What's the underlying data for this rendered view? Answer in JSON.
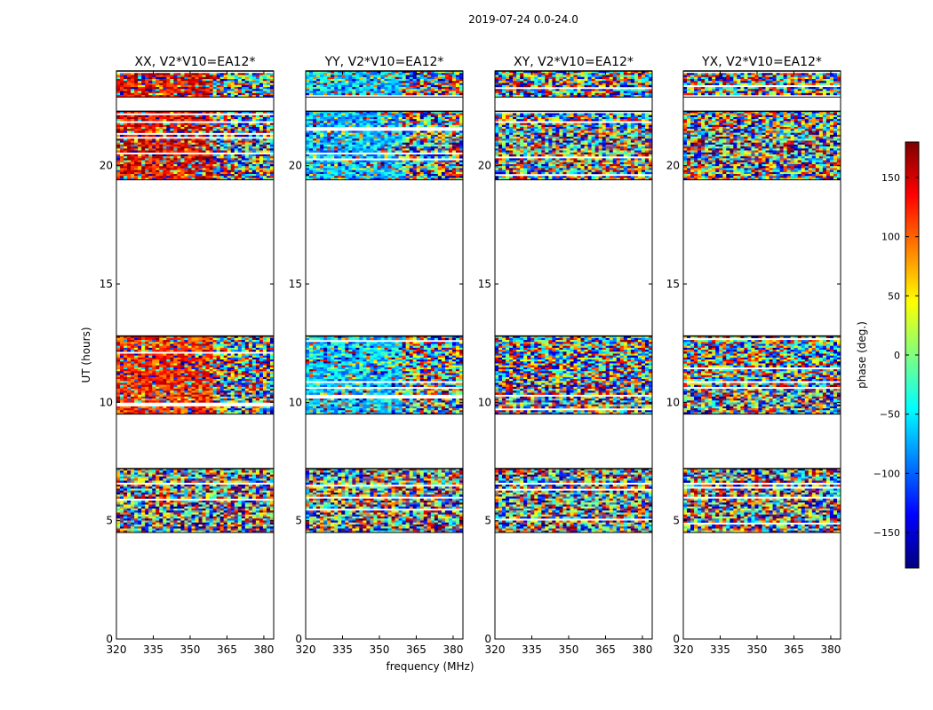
{
  "figure": {
    "suptitle": "2019-07-24 0.0-24.0",
    "xlabel": "frequency (MHz)",
    "ylabel": "UT (hours)",
    "colorbar_label": "phase (deg.)",
    "colorbar_ticks": [
      150,
      100,
      50,
      0,
      -50,
      -100,
      -150
    ],
    "colorbar_range": [
      -180,
      180
    ],
    "colormap": [
      "#00007f",
      "#0000ff",
      "#007fff",
      "#00ffff",
      "#7fff7f",
      "#ffff00",
      "#ff7f00",
      "#ff0000",
      "#7f0000"
    ]
  },
  "chart_data": {
    "type": "heatmap",
    "x_range_mhz": [
      320,
      384
    ],
    "y_range_hours": [
      0,
      24
    ],
    "x_ticks": [
      "320",
      "335",
      "350",
      "365",
      "380"
    ],
    "y_ticks": [
      "0",
      "5",
      "10",
      "15",
      "20"
    ],
    "value_range_deg": [
      -180,
      180
    ],
    "observation_blocks_hours": [
      [
        4.5,
        7.2
      ],
      [
        9.5,
        12.8
      ],
      [
        19.4,
        22.3
      ],
      [
        22.9,
        24.0
      ]
    ],
    "noisy_above_mhz": 360,
    "panels": [
      {
        "title": "XX, V2*V10=EA12*",
        "base_phase_by_block": [
          null,
          120,
          140,
          140
        ],
        "coherence": 0.7
      },
      {
        "title": "YY, V2*V10=EA12*",
        "base_phase_by_block": [
          null,
          -60,
          -70,
          -60
        ],
        "coherence": 0.7
      },
      {
        "title": "XY, V2*V10=EA12*",
        "base_phase_by_block": [
          null,
          null,
          null,
          null
        ],
        "coherence": 0.0
      },
      {
        "title": "YX, V2*V10=EA12*",
        "base_phase_by_block": [
          null,
          null,
          null,
          null
        ],
        "coherence": 0.0
      }
    ]
  }
}
